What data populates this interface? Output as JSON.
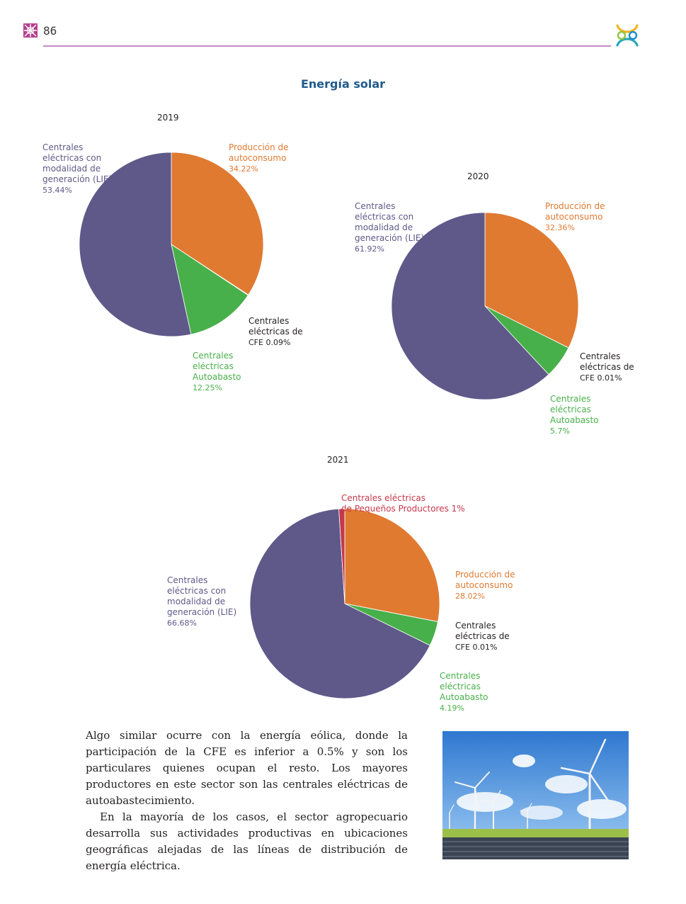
{
  "header": {
    "page_number": "86"
  },
  "section_title": "Energía solar",
  "colors": {
    "generacion": "#5e5989",
    "autoconsumo": "#e07a31",
    "autoabasto": "#48b04a",
    "cfe": "#ffffff",
    "pequenos": "#c5384b"
  },
  "chart_data": [
    {
      "type": "pie",
      "title": "2019",
      "slices": [
        {
          "label": "Producción de autoconsumo",
          "value": 34.22,
          "color": "#e07a31"
        },
        {
          "label": "Centrales eléctricas de CFE",
          "value": 0.09,
          "color": "#ffffff"
        },
        {
          "label": "Centrales eléctricas Autoabasto",
          "value": 12.25,
          "color": "#48b04a"
        },
        {
          "label": "Centrales eléctricas con modalidad de generación (LIE)",
          "value": 53.44,
          "color": "#5e5989"
        }
      ]
    },
    {
      "type": "pie",
      "title": "2020",
      "slices": [
        {
          "label": "Producción de autoconsumo",
          "value": 32.36,
          "color": "#e07a31"
        },
        {
          "label": "Centrales eléctricas de CFE",
          "value": 0.01,
          "color": "#ffffff"
        },
        {
          "label": "Centrales eléctricas Autoabasto",
          "value": 5.7,
          "color": "#48b04a"
        },
        {
          "label": "Centrales eléctricas con modalidad de generación (LIE)",
          "value": 61.92,
          "color": "#5e5989"
        }
      ]
    },
    {
      "type": "pie",
      "title": "2021",
      "slices": [
        {
          "label": "Producción de autoconsumo",
          "value": 28.02,
          "color": "#e07a31"
        },
        {
          "label": "Centrales eléctricas de CFE",
          "value": 0.01,
          "color": "#ffffff"
        },
        {
          "label": "Centrales eléctricas Autoabasto",
          "value": 4.19,
          "color": "#48b04a"
        },
        {
          "label": "Centrales eléctricas con modalidad de generación (LIE)",
          "value": 66.68,
          "color": "#5e5989"
        },
        {
          "label": "Centrales eléctricas de Pequeños Productores",
          "value": 1,
          "color": "#c5384b"
        }
      ]
    }
  ],
  "labels": {
    "c2019": {
      "generacion": {
        "text": "Centrales\neléctricas con\nmodalidad de\ngeneración (LIE)",
        "pct": "53.44%"
      },
      "autoconsumo": {
        "text": "Producción de\nautoconsumo",
        "pct": "34.22%"
      },
      "cfe": {
        "text": "Centrales\neléctricas de",
        "pct": "CFE 0.09%"
      },
      "autoabasto": {
        "text": "Centrales\neléctricas\nAutoabasto",
        "pct": "12.25%"
      }
    },
    "c2020": {
      "generacion": {
        "text": "Centrales\neléctricas con\nmodalidad de\ngeneración (LIE)",
        "pct": "61.92%"
      },
      "autoconsumo": {
        "text": "Producción de\nautoconsumo",
        "pct": "32.36%"
      },
      "cfe": {
        "text": "Centrales\neléctricas de",
        "pct": "CFE 0.01%"
      },
      "autoabasto": {
        "text": "Centrales\neléctricas\nAutoabasto",
        "pct": "5.7%"
      }
    },
    "c2021": {
      "pequenos": {
        "text": "Centrales eléctricas\nde Pequeños Productores 1%"
      },
      "generacion": {
        "text": "Centrales\neléctricas con\nmodalidad de\ngeneración (LIE)",
        "pct": "66.68%"
      },
      "autoconsumo": {
        "text": "Producción de\nautoconsumo",
        "pct": "28.02%"
      },
      "cfe": {
        "text": "Centrales\neléctricas de",
        "pct": "CFE 0.01%"
      },
      "autoabasto": {
        "text": "Centrales\neléctricas\nAutoabasto",
        "pct": "4.19%"
      }
    }
  },
  "body": {
    "paragraph1": "Algo similar ocurre con la energía eólica, donde la participación de la CFE es inferior a 0.5% y son los particulares quienes ocupan el resto. Los mayores productores en este sector son las centrales eléctricas de autoabastecimiento.",
    "paragraph2": "En la mayoría de los casos, el sector agropecuario desarrolla sus actividades productivas en ubicaciones geográficas alejadas de las líneas de distribución de energía eléctrica."
  },
  "photo": {
    "icon": "wind-turbines-photo"
  }
}
